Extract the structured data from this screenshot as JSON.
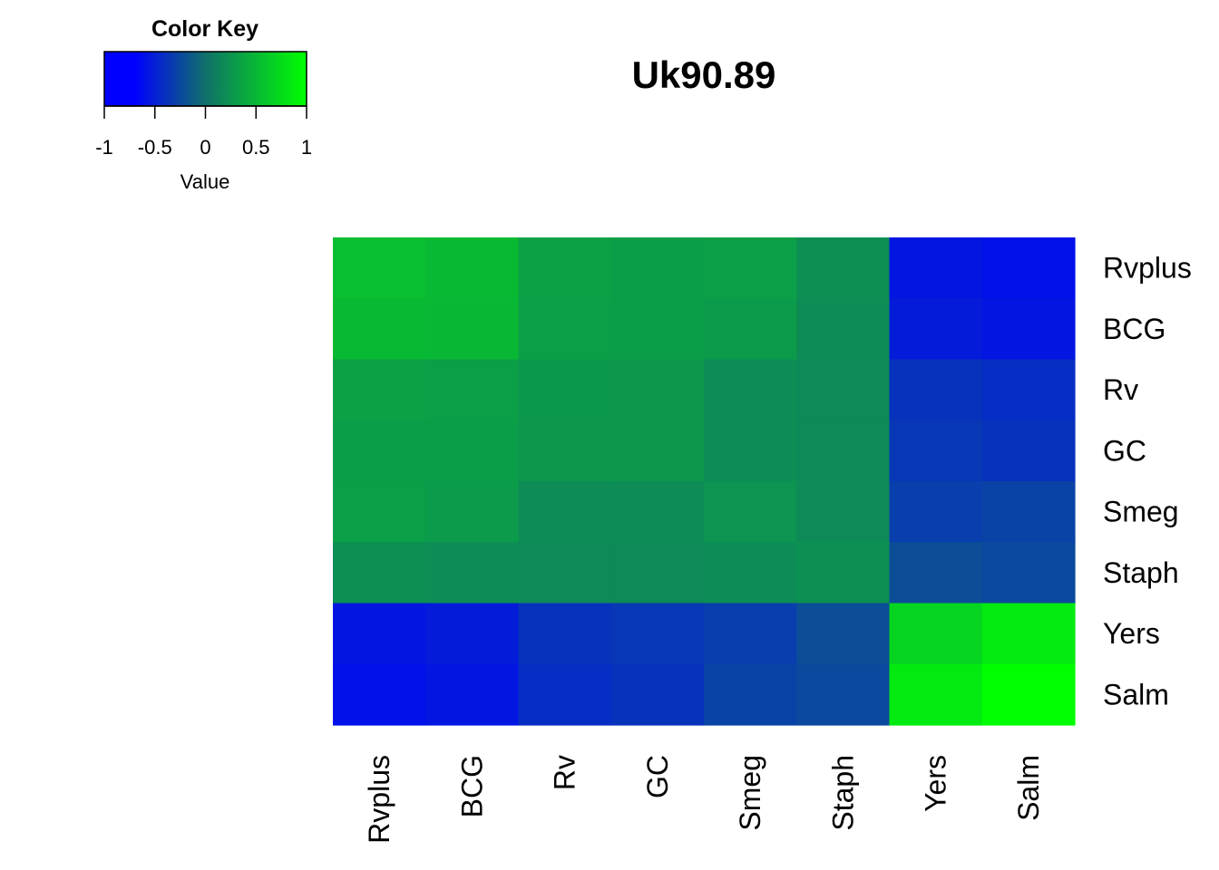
{
  "chart_data": {
    "type": "heatmap",
    "title": "Uk90.89",
    "rows": [
      "Rvplus",
      "BCG",
      "Rv",
      "GC",
      "Smeg",
      "Staph",
      "Yers",
      "Salm"
    ],
    "cols": [
      "Rvplus",
      "BCG",
      "Rv",
      "GC",
      "Smeg",
      "Staph",
      "Yers",
      "Salm"
    ],
    "values": [
      [
        0.55,
        0.52,
        0.35,
        0.32,
        0.33,
        0.22,
        -0.8,
        -0.85
      ],
      [
        0.52,
        0.5,
        0.33,
        0.32,
        0.3,
        0.2,
        -0.75,
        -0.8
      ],
      [
        0.35,
        0.33,
        0.28,
        0.27,
        0.2,
        0.18,
        -0.55,
        -0.6
      ],
      [
        0.32,
        0.32,
        0.27,
        0.27,
        0.2,
        0.18,
        -0.5,
        -0.55
      ],
      [
        0.33,
        0.3,
        0.2,
        0.2,
        0.25,
        0.18,
        -0.45,
        -0.4
      ],
      [
        0.22,
        0.2,
        0.18,
        0.18,
        0.2,
        0.22,
        -0.3,
        -0.35
      ],
      [
        -0.8,
        -0.75,
        -0.55,
        -0.5,
        -0.45,
        -0.3,
        0.7,
        0.85
      ],
      [
        -0.85,
        -0.8,
        -0.6,
        -0.55,
        -0.4,
        -0.35,
        0.85,
        1.0
      ]
    ],
    "color_key": {
      "title": "Color Key",
      "xlabel": "Value",
      "range": [
        -1,
        1
      ],
      "ticks": [
        "-1",
        "-0.5",
        "0",
        "0.5",
        "1"
      ],
      "low_color": "#0000FF",
      "high_color": "#00FF00"
    }
  }
}
